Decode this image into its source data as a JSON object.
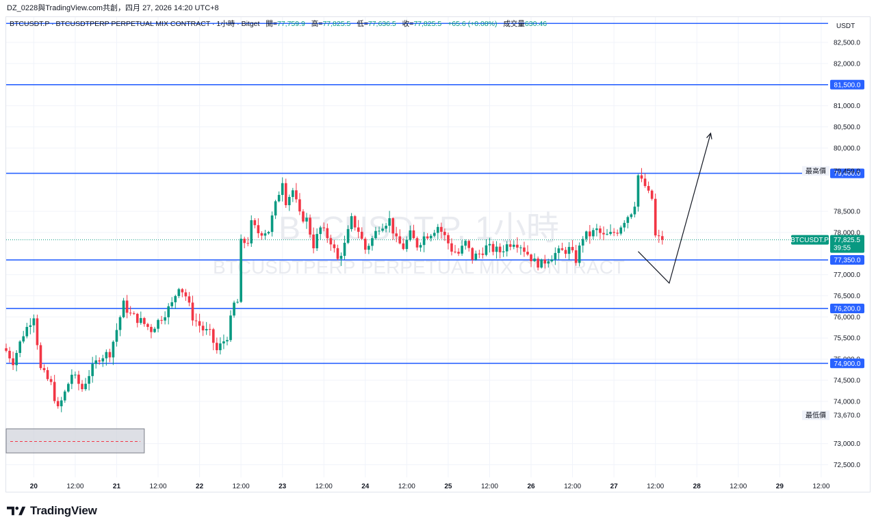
{
  "header": {
    "share_text": "DZ_0228與TradingView.com共創，四月 27, 2026 14:20 UTC+8"
  },
  "legend": {
    "symbol": "BTCUSDT.P · BTCUSDTPERP PERPETUAL MIX CONTRACT · 1小時 · Bitget",
    "open_label": "開=",
    "open_value": "77,759.9",
    "high_label": "高=",
    "high_value": "77,825.5",
    "low_label": "低=",
    "low_value": "77,636.5",
    "close_label": "收=",
    "close_value": "77,825.5",
    "change": "+65.6 (+0.08%)",
    "volume_label": "成交量",
    "volume_value": "630.46"
  },
  "watermark": {
    "line1": "BTCUSDT.P, 1小時",
    "line2": "BTCUSDTPERP PERPETUAL MIX CONTRACT"
  },
  "footer": {
    "brand": "TradingView"
  },
  "colors": {
    "up": "#089981",
    "down": "#f23645",
    "level_line": "#2962ff",
    "current_price": "#089981",
    "grid": "#f0f3fa",
    "range_box_fill": "#d1d4dc",
    "range_box_line": "#f23645"
  },
  "chart_data": {
    "type": "candlestick",
    "symbol": "BTCUSDT.P",
    "interval": "1小時",
    "exchange": "Bitget",
    "currency": "USDT",
    "grid": true,
    "ylim": [
      72200,
      83100
    ],
    "y_ticks": [
      "82,500.0",
      "82,000.0",
      "81,000.0",
      "80,500.0",
      "80,000.0",
      "78,500.0",
      "78,000.0",
      "77,000.0",
      "76,500.0",
      "76,000.0",
      "75,500.0",
      "75,000.0",
      "74,500.0",
      "74,000.0",
      "73,000.0",
      "72,500.0"
    ],
    "x_ticks": [
      {
        "label": "20",
        "t": 0,
        "bold": true
      },
      {
        "label": "12:00",
        "t": 12
      },
      {
        "label": "21",
        "t": 24,
        "bold": true
      },
      {
        "label": "12:00",
        "t": 36
      },
      {
        "label": "22",
        "t": 48,
        "bold": true
      },
      {
        "label": "12:00",
        "t": 60
      },
      {
        "label": "23",
        "t": 72,
        "bold": true
      },
      {
        "label": "12:00",
        "t": 84
      },
      {
        "label": "24",
        "t": 96,
        "bold": true
      },
      {
        "label": "12:00",
        "t": 108
      },
      {
        "label": "25",
        "t": 120,
        "bold": true
      },
      {
        "label": "12:00",
        "t": 132
      },
      {
        "label": "26",
        "t": 144,
        "bold": true
      },
      {
        "label": "12:00",
        "t": 156
      },
      {
        "label": "27",
        "t": 168,
        "bold": true
      },
      {
        "label": "12:00",
        "t": 180
      },
      {
        "label": "28",
        "t": 192,
        "bold": true
      },
      {
        "label": "12:00",
        "t": 204
      },
      {
        "label": "29",
        "t": 216,
        "bold": true
      },
      {
        "label": "12:00",
        "t": 228
      }
    ],
    "x_range": [
      -8,
      230
    ],
    "current_price": {
      "label": "BTCUSDT.P",
      "value": 77825.5,
      "value_text": "77,825.5",
      "countdown": "39:55"
    },
    "price_labels": [
      {
        "text": "USDT"
      }
    ],
    "levels": [
      {
        "value": 82950,
        "text": ""
      },
      {
        "value": 81500,
        "text": "81,500.0"
      },
      {
        "value": 79400,
        "text": "79,400.0"
      },
      {
        "value": 77350,
        "text": "77,350.0"
      },
      {
        "value": 76200,
        "text": "76,200.0"
      },
      {
        "value": 74900,
        "text": "74,900.0"
      }
    ],
    "extremes": [
      {
        "label": "最高價",
        "value": 79459,
        "text": "79,459.0"
      },
      {
        "label": "最低價",
        "value": 73670,
        "text": "73,670.0"
      }
    ],
    "projection": [
      {
        "t": 175,
        "y": 77550
      },
      {
        "t": 184,
        "y": 76800
      },
      {
        "t": 196,
        "y": 80350
      }
    ],
    "range_box": {
      "t_start": -8,
      "t_end": 32,
      "y_top": 73350,
      "y_bottom": 72780,
      "y_mid": 73050
    },
    "anchors": [
      {
        "t": -8,
        "c": 75200
      },
      {
        "t": -6,
        "c": 74950
      },
      {
        "t": -3,
        "c": 75600
      },
      {
        "t": 0,
        "c": 76050
      },
      {
        "t": 2,
        "c": 74750
      },
      {
        "t": 5,
        "c": 74400
      },
      {
        "t": 7,
        "c": 73800
      },
      {
        "t": 9,
        "c": 74200
      },
      {
        "t": 11,
        "c": 74650
      },
      {
        "t": 14,
        "c": 74300
      },
      {
        "t": 16,
        "c": 74650
      },
      {
        "t": 19,
        "c": 75050
      },
      {
        "t": 22,
        "c": 75150
      },
      {
        "t": 24,
        "c": 75700
      },
      {
        "t": 26,
        "c": 76300
      },
      {
        "t": 28,
        "c": 76050
      },
      {
        "t": 31,
        "c": 75900
      },
      {
        "t": 34,
        "c": 75700
      },
      {
        "t": 37,
        "c": 76000
      },
      {
        "t": 40,
        "c": 76300
      },
      {
        "t": 42,
        "c": 76750
      },
      {
        "t": 44,
        "c": 76500
      },
      {
        "t": 46,
        "c": 76000
      },
      {
        "t": 49,
        "c": 75700
      },
      {
        "t": 51,
        "c": 75600
      },
      {
        "t": 53,
        "c": 75200
      },
      {
        "t": 56,
        "c": 75550
      },
      {
        "t": 58,
        "c": 76300
      },
      {
        "t": 59,
        "c": 76350
      },
      {
        "t": 60,
        "c": 77750
      },
      {
        "t": 62,
        "c": 77800
      },
      {
        "t": 63,
        "c": 78200
      },
      {
        "t": 65,
        "c": 78000
      },
      {
        "t": 68,
        "c": 78050
      },
      {
        "t": 71,
        "c": 78950
      },
      {
        "t": 72,
        "c": 79250
      },
      {
        "t": 73,
        "c": 78750
      },
      {
        "t": 75,
        "c": 79000
      },
      {
        "t": 77,
        "c": 78400
      },
      {
        "t": 79,
        "c": 78300
      },
      {
        "t": 81,
        "c": 77700
      },
      {
        "t": 83,
        "c": 78100
      },
      {
        "t": 86,
        "c": 77800
      },
      {
        "t": 88,
        "c": 77350
      },
      {
        "t": 90,
        "c": 77700
      },
      {
        "t": 92,
        "c": 78300
      },
      {
        "t": 94,
        "c": 78050
      },
      {
        "t": 96,
        "c": 77600
      },
      {
        "t": 98,
        "c": 77850
      },
      {
        "t": 100,
        "c": 78150
      },
      {
        "t": 103,
        "c": 78300
      },
      {
        "t": 105,
        "c": 77800
      },
      {
        "t": 107,
        "c": 77650
      },
      {
        "t": 109,
        "c": 77950
      },
      {
        "t": 111,
        "c": 77700
      },
      {
        "t": 113,
        "c": 77900
      },
      {
        "t": 115,
        "c": 78000
      },
      {
        "t": 117,
        "c": 78150
      },
      {
        "t": 119,
        "c": 77900
      },
      {
        "t": 121,
        "c": 77600
      },
      {
        "t": 123,
        "c": 77500
      },
      {
        "t": 125,
        "c": 77750
      },
      {
        "t": 127,
        "c": 77400
      },
      {
        "t": 129,
        "c": 77500
      },
      {
        "t": 131,
        "c": 77650
      },
      {
        "t": 133,
        "c": 77600
      },
      {
        "t": 135,
        "c": 77550
      },
      {
        "t": 137,
        "c": 77700
      },
      {
        "t": 139,
        "c": 77800
      },
      {
        "t": 141,
        "c": 77700
      },
      {
        "t": 143,
        "c": 77500
      },
      {
        "t": 145,
        "c": 77300
      },
      {
        "t": 147,
        "c": 77250
      },
      {
        "t": 149,
        "c": 77400
      },
      {
        "t": 151,
        "c": 77500
      },
      {
        "t": 153,
        "c": 77550
      },
      {
        "t": 155,
        "c": 77600
      },
      {
        "t": 157,
        "c": 77350
      },
      {
        "t": 159,
        "c": 77900
      },
      {
        "t": 161,
        "c": 77950
      },
      {
        "t": 163,
        "c": 78050
      },
      {
        "t": 165,
        "c": 77900
      },
      {
        "t": 167,
        "c": 77950
      },
      {
        "t": 169,
        "c": 78050
      },
      {
        "t": 171,
        "c": 78300
      },
      {
        "t": 173,
        "c": 78500
      },
      {
        "t": 174,
        "c": 78700
      },
      {
        "t": 175,
        "c": 79350
      },
      {
        "t": 176,
        "c": 79200
      },
      {
        "t": 177,
        "c": 79100
      },
      {
        "t": 178,
        "c": 78900
      },
      {
        "t": 179,
        "c": 78800
      },
      {
        "t": 180,
        "c": 77900
      },
      {
        "t": 181,
        "c": 77850
      },
      {
        "t": 182,
        "c": 77825.5
      }
    ]
  }
}
